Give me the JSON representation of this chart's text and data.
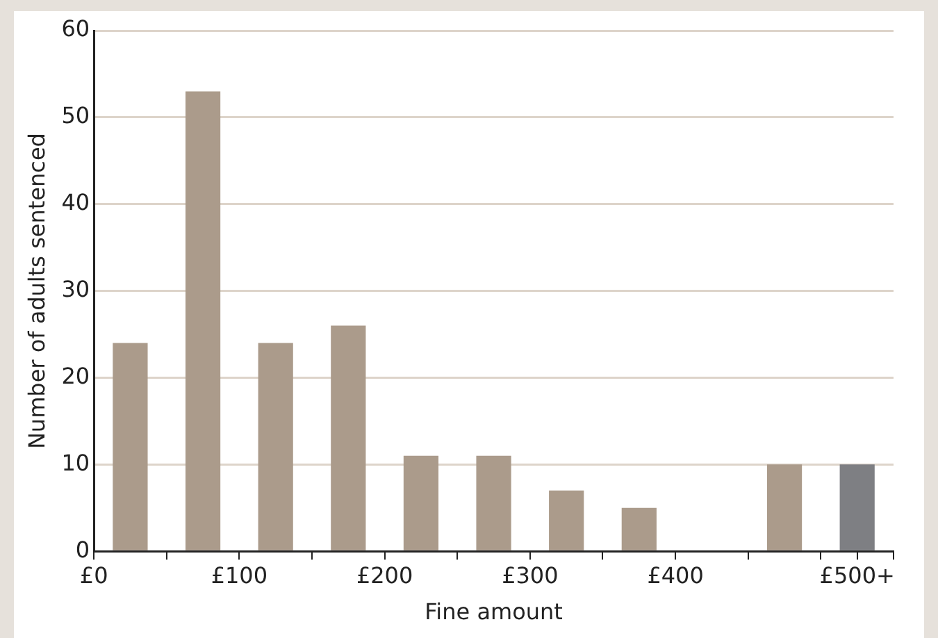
{
  "chart_data": {
    "type": "histogram",
    "xlabel": "Fine amount",
    "ylabel": "Number of adults sentenced",
    "bins": [
      0,
      50,
      100,
      150,
      200,
      250,
      300,
      350,
      400,
      450,
      500,
      550
    ],
    "values": [
      24,
      53,
      24,
      26,
      11,
      11,
      7,
      5,
      0,
      10,
      10
    ],
    "colors": [
      "#ab9b8b",
      "#ab9b8b",
      "#ab9b8b",
      "#ab9b8b",
      "#ab9b8b",
      "#ab9b8b",
      "#ab9b8b",
      "#ab9b8b",
      "#ab9b8b",
      "#ab9b8b",
      "#7e7f83"
    ],
    "xlim": [
      0,
      550
    ],
    "xticks": [
      {
        "value": 0,
        "label": "£0"
      },
      {
        "value": 50,
        "label": null
      },
      {
        "value": 100,
        "label": "£100"
      },
      {
        "value": 150,
        "label": null
      },
      {
        "value": 200,
        "label": "£200"
      },
      {
        "value": 250,
        "label": null
      },
      {
        "value": 300,
        "label": "£300"
      },
      {
        "value": 350,
        "label": null
      },
      {
        "value": 400,
        "label": "£400"
      },
      {
        "value": 450,
        "label": null
      },
      {
        "value": 500,
        "label": null
      },
      {
        "value": 525,
        "label": "£500+"
      },
      {
        "value": 550,
        "label": null
      }
    ],
    "ylim": [
      0,
      60
    ],
    "yticks": [
      0,
      10,
      20,
      30,
      40,
      50,
      60
    ],
    "grid": "y"
  }
}
